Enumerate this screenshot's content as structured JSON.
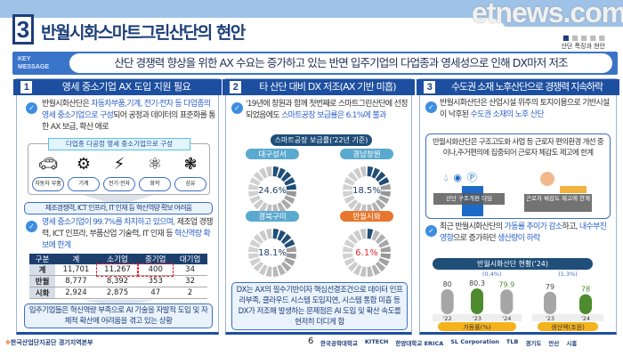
{
  "header": {
    "section_number": "3",
    "title": "반월시화스마트그린산단의 현안",
    "pager_label": "산단 특징과 현안",
    "key_label": "KEY MESSAGE",
    "key_message": "산단 경쟁력 향상을 위한 AX 수요는 증가하고 있는 반면 입주기업의 다업종과 영세성으로 인해 DX마저 저조"
  },
  "panel1": {
    "number": "1",
    "title": "영세 중소기업 AX 도입 지원 필요",
    "bullet1_a": "반월시화산단은 ",
    "bullet1_b": "자동차부품,기계, 전기·전자 등 다업종의 영세 중소기업으로 구성",
    "bullet1_c": "되어 공정과 데이터의 표준화를 통한 AX 보급, 확산 애로",
    "industries_label": "다업종 다공정 영세 중소기업으로 구성",
    "industries": [
      {
        "icon": "car-icon",
        "label": "자동차 부품"
      },
      {
        "icon": "robot-arm-icon",
        "label": "기계"
      },
      {
        "icon": "battery-icon",
        "label": "전기·전자"
      },
      {
        "icon": "atom-icon",
        "label": "화학"
      },
      {
        "icon": "fiber-icon",
        "label": "섬유"
      }
    ],
    "box1": "제조경쟁력, ICT 인프라, IT 인재 등 혁신역량 확보 어려움",
    "bullet2_a": "영세 중소기업이 99.7%를 차지하고 있으며,",
    "bullet2_b": " 제조업 경쟁력, ICT 인프라, 부품산업 기술력, IT 인재 등 ",
    "bullet2_c": "혁신역량 확보에 한계",
    "table": {
      "headers": [
        "구분",
        "계",
        "소기업",
        "중기업",
        "대기업"
      ],
      "rows": [
        [
          "계",
          "11,701",
          "11,267",
          "400",
          "34"
        ],
        [
          "반월",
          "8,777",
          "8,392",
          "353",
          "32"
        ],
        [
          "시화",
          "2,924",
          "2,875",
          "47",
          "2"
        ]
      ]
    },
    "box2": "입주기업들은 혁신역량 부족으로 AI 기술을 자발적 도입 및 자체적 확산에 어려움을 겪고 있는 상황"
  },
  "panel2": {
    "number": "2",
    "title": "타 산단 대비 DX 저조(AX 기반 미흡)",
    "bullet_a": "'19년에 창원과 함께 첫번째로 스마트그린산단에 선정되었음에도 ",
    "bullet_b": "스마트공장 보급률은 6.1%에 불과",
    "chart_title": "스마트공장 보급률('22년 기준)",
    "box": "DX는 AX의 필수기반이자 핵심선결조건으로 데이터 인프라부족, 클라우드 시스템 도입지연, 시스템 통합 미흡 등 DX가 저조해 발생하는 문제점은 AI 도입 및 확산 속도를 현저히 더디게 함"
  },
  "panel3": {
    "number": "3",
    "title": "수도권 소재 노후산단으로 경쟁력 지속하락",
    "bullet1_a": "반월시화산단은 산업시설 위주의 토지이용으로 기반시설이 낙후된 ",
    "bullet1_b": "수도권 소재의 노후 산단",
    "box_text": "반월시화산단은 구조고도화 사업 등 근로자 편의환경 개선 중이나,주거편의에 집중되어 근로자 체감도 제고에 한계",
    "img1_caption": "산단 구조개편 더딤",
    "img2_caption": "근로자 체감도 제고에 한계",
    "bullet2_a": "최근 반월시화산단의 ",
    "bullet2_b": "가동률 추이가 감소",
    "bullet2_c": "하고, ",
    "bullet2_d": "내수부진 영향",
    "bullet2_e": "으로 증가하던 ",
    "bullet2_f": "생산량이 하락"
  },
  "chart_data": [
    {
      "type": "donut",
      "title": "스마트공장 보급률('22년 기준)",
      "categories": [
        "대구성서",
        "경남창원",
        "경북구미",
        "반월시화"
      ],
      "values": [
        24.6,
        18.5,
        18.1,
        6.1
      ],
      "value_labels": [
        "24.6%",
        "18.5%",
        "18.1%",
        "6.1%"
      ],
      "highlight": "반월시화",
      "colors": {
        "filled": "#1f4e79",
        "empty": "#c8c8c8",
        "highlight_label": "#e8772e",
        "label": "#5aa9cf",
        "highlight_text": "#e8242a"
      }
    },
    {
      "type": "bar",
      "title": "반월시화산단 현황('24)",
      "series": [
        {
          "name": "가동률(%)",
          "categories": [
            "'22",
            "'23",
            "'24"
          ],
          "values": [
            80,
            80.3,
            79.9
          ],
          "change": "(0.4%)"
        },
        {
          "name": "생산액(조원)",
          "categories": [
            "'23",
            "'24"
          ],
          "values": [
            79,
            78
          ],
          "change": "(1.3%)"
        }
      ]
    }
  ],
  "footer": {
    "org": "한국산업단지공단 경기지역본부",
    "page": "6",
    "logos": [
      "한국공학대학교",
      "KITECH",
      "한양대학교 ERICA",
      "SL Corporation",
      "TLB",
      "경기도",
      "안산",
      "시흥"
    ],
    "watermark": "etnews.com"
  }
}
